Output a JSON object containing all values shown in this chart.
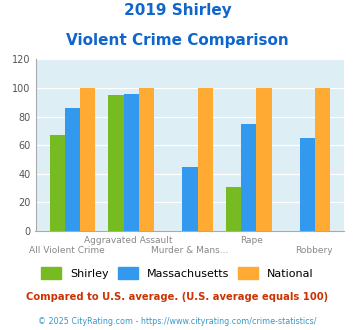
{
  "title_line1": "2019 Shirley",
  "title_line2": "Violent Crime Comparison",
  "categories": [
    "All Violent Crime",
    "Aggravated Assault",
    "Murder & Mans...",
    "Rape",
    "Robbery"
  ],
  "top_labels": [
    "",
    "Aggravated Assault",
    "",
    "Rape",
    ""
  ],
  "bot_labels": [
    "All Violent Crime",
    "",
    "Murder & Mans...",
    "",
    "Robbery"
  ],
  "shirley": [
    67,
    95,
    0,
    31,
    0
  ],
  "massachusetts": [
    86,
    96,
    45,
    75,
    65
  ],
  "national": [
    100,
    100,
    100,
    100,
    100
  ],
  "color_shirley": "#77bb22",
  "color_massachusetts": "#3399ee",
  "color_national": "#ffaa33",
  "ylim": [
    0,
    120
  ],
  "yticks": [
    0,
    20,
    40,
    60,
    80,
    100,
    120
  ],
  "footnote1": "Compared to U.S. average. (U.S. average equals 100)",
  "footnote2": "© 2025 CityRating.com - https://www.cityrating.com/crime-statistics/",
  "title_color": "#1166cc",
  "footnote1_color": "#cc3300",
  "footnote2_color": "#3399cc",
  "plot_bg": "#ddeef5",
  "fig_bg": "#ffffff"
}
